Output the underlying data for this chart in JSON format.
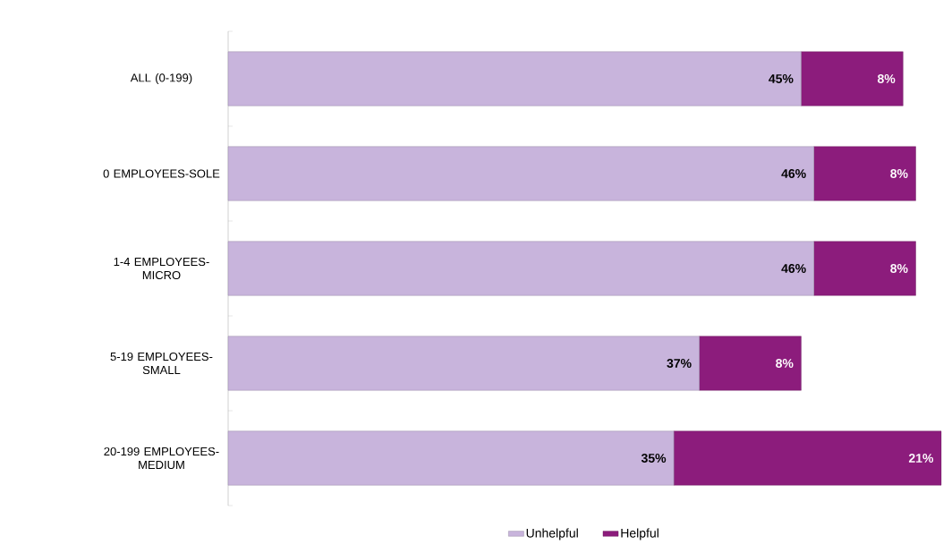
{
  "chart_data": {
    "type": "bar",
    "orientation": "horizontal",
    "stacked": true,
    "categories": [
      "ALL (0-199)",
      "0 EMPLOYEES-SOLE",
      "1-4 EMPLOYEES-MICRO",
      "5-19 EMPLOYEES-SMALL",
      "20-199 EMPLOYEES-MEDIUM"
    ],
    "series": [
      {
        "name": "Unhelpful",
        "color": "#c8b4dc",
        "values": [
          45,
          46,
          46,
          37,
          35
        ],
        "value_labels": [
          "45%",
          "46%",
          "46%",
          "37%",
          "35%"
        ]
      },
      {
        "name": "Helpful",
        "color": "#8c1c7c",
        "values": [
          8,
          8,
          8,
          8,
          21
        ],
        "value_labels": [
          "8%",
          "8%",
          "8%",
          "8%",
          "21%"
        ]
      }
    ],
    "legend": "bottom"
  }
}
